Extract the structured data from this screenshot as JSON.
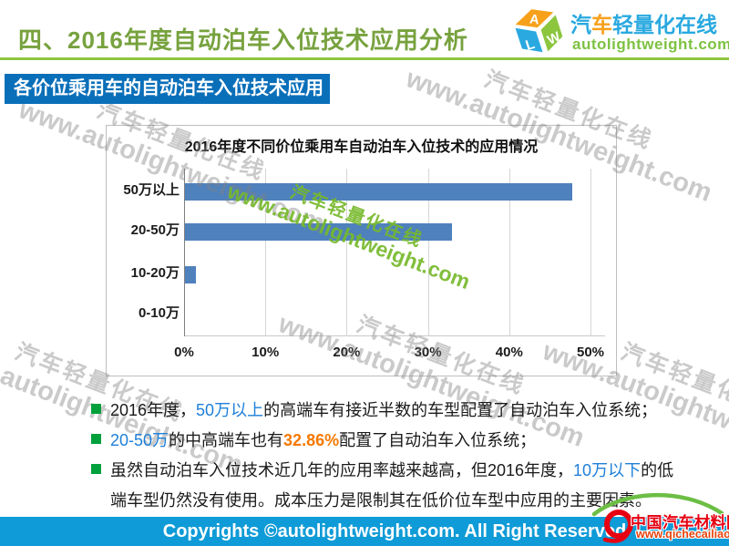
{
  "header": {
    "title": "四、2016年度自动泊车入位技术应用分析",
    "brand": {
      "cube_letters": [
        "A",
        "L",
        "W"
      ],
      "cn_part1": "汽",
      "cn_part2": "车",
      "cn_part3": "轻量化在线",
      "url": "autolightweight.com"
    }
  },
  "banner": {
    "label": "各价位乘用车的自动泊车入位技术应用"
  },
  "chart_data": {
    "type": "bar",
    "orientation": "horizontal",
    "title": "2016年度不同价位乘用车自动泊车入位技术的应用情况",
    "categories": [
      "50万以上",
      "20-50万",
      "10-20万",
      "0-10万"
    ],
    "values": [
      47.7,
      32.86,
      1.4,
      0
    ],
    "unit": "percent",
    "xlim": [
      0,
      50
    ],
    "x_ticks": [
      "0%",
      "10%",
      "20%",
      "30%",
      "40%",
      "50%"
    ],
    "grid": true,
    "legend": false,
    "bar_color": "#4F81BD"
  },
  "analysis": {
    "b1": {
      "t1": "2016年度，",
      "hl": "50万以上",
      "t2": "的高端车有接近半数的车型配置了自动泊车入位系统；"
    },
    "b2": {
      "hl": "20-50万",
      "t1": "的中高端车也有",
      "pct": "32.86%",
      "t2": "配置了自动泊车入位系统；"
    },
    "b3": {
      "t1": "虽然自动泊车入位技术近几年的应用率越来越高，但2016年度，",
      "hl": "10万以下",
      "t2": "的低端车型仍然没有使用。成本压力是限制其在低价位车型中应用的主要因素。"
    }
  },
  "watermark": {
    "line1": "汽车轻量化在线",
    "line2": "www.autolightweight.com"
  },
  "footer": {
    "copyright": "Copyrights ©autolightweight.com. All Right Reserved",
    "partner": {
      "name": "中国汽车材料网",
      "url": "www.qichecailiao.com"
    }
  },
  "colors": {
    "title_green": "#77A23E",
    "divider_green": "#8DC63F",
    "banner_blue": "#0A6FB9",
    "bar_blue": "#4F81BD",
    "footer_blue": "#0F9BD7",
    "bullet_green": "#00A03C",
    "highlight_blue": "#1E7FD9",
    "highlight_orange": "#F57900",
    "partner_red": "#E60012"
  }
}
